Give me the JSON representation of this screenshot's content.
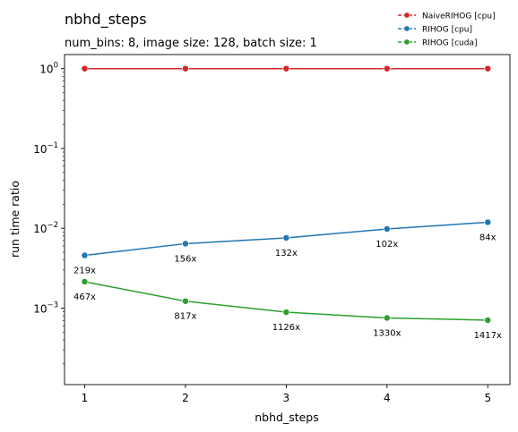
{
  "chart_data": {
    "type": "line",
    "title": "nbhd_steps",
    "subtitle": "num_bins: 8, image size: 128, batch size: 1",
    "xlabel": "nbhd_steps",
    "ylabel": "run time ratio",
    "yscale": "log",
    "x": [
      1,
      2,
      3,
      4,
      5
    ],
    "ylim": [
      0.00011,
      1.5
    ],
    "yticks": [
      {
        "value": 1,
        "base": "10",
        "exp": "0"
      },
      {
        "value": 0.1,
        "base": "10",
        "exp": "−1"
      },
      {
        "value": 0.01,
        "base": "10",
        "exp": "−2"
      },
      {
        "value": 0.001,
        "base": "10",
        "exp": "−3"
      }
    ],
    "grid": false,
    "legend_position": "top-right",
    "series": [
      {
        "name": "NaiveRIHOG [cpu]",
        "color": "#d62728",
        "values": [
          1.0,
          1.0,
          1.0,
          1.0,
          1.0
        ],
        "labels": []
      },
      {
        "name": "RIHOG [cpu]",
        "color": "#1f77b4",
        "values": [
          0.00457,
          0.00641,
          0.00758,
          0.0098,
          0.0119
        ],
        "labels": [
          "219x",
          "156x",
          "132x",
          "102x",
          "84x"
        ]
      },
      {
        "name": "RIHOG [cuda]",
        "color": "#2ca02c",
        "values": [
          0.00214,
          0.00122,
          0.000888,
          0.000752,
          0.000706
        ],
        "labels": [
          "467x",
          "817x",
          "1126x",
          "1330x",
          "1417x"
        ]
      }
    ]
  }
}
